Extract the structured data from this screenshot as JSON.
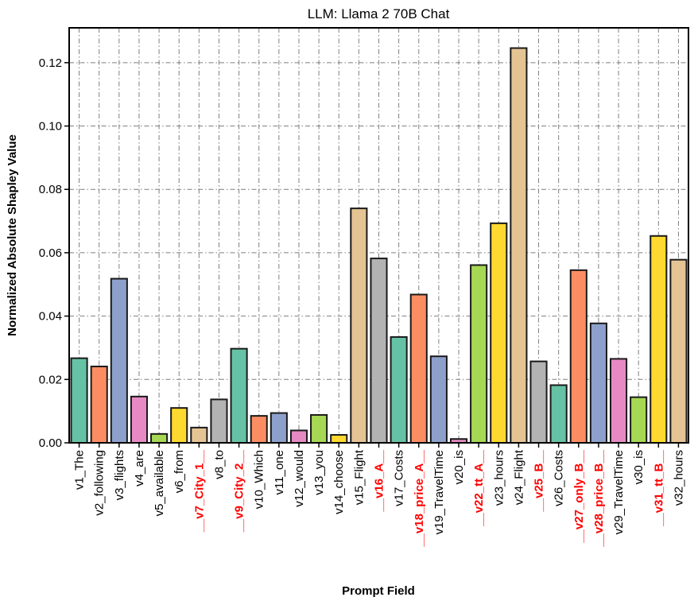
{
  "chart_data": {
    "type": "bar",
    "title": "LLM: Llama 2 70B Chat",
    "xlabel": "Prompt Field",
    "ylabel": "Normalized Absolute Shapley Value",
    "ylim": [
      0,
      0.131
    ],
    "yticks": [
      "0.00",
      "0.02",
      "0.04",
      "0.06",
      "0.08",
      "0.10",
      "0.12"
    ],
    "grid": true,
    "categories": [
      "v1_The",
      "v2_following",
      "v3_flights",
      "v4_are",
      "v5_available",
      "v6_from",
      "__v7_City_1__",
      "v8_to",
      "__v9_City_2__",
      "v10_Which",
      "v11_one",
      "v12_would",
      "v13_you",
      "v14_choose",
      "v15_Flight",
      "__v16_A__",
      "v17_Costs",
      "__v18_price_A__",
      "v19_TravelTime",
      "v20_is",
      "__v22_tt_A__",
      "v23_hours",
      "v24_Flight",
      "__v25_B__",
      "v26_Costs",
      "__v27_only_B__",
      "__v28_price_B__",
      "v29_TravelTime",
      "v30_is",
      "__v31_tt_B__",
      "v32_hours"
    ],
    "highlighted": [
      false,
      false,
      false,
      false,
      false,
      false,
      true,
      false,
      true,
      false,
      false,
      false,
      false,
      false,
      false,
      true,
      false,
      true,
      false,
      false,
      true,
      false,
      false,
      true,
      false,
      true,
      true,
      false,
      false,
      true,
      false
    ],
    "values": [
      0.0267,
      0.0241,
      0.0518,
      0.0146,
      0.0028,
      0.011,
      0.0048,
      0.0137,
      0.0297,
      0.0085,
      0.0094,
      0.0039,
      0.0088,
      0.0025,
      0.074,
      0.0582,
      0.0334,
      0.0468,
      0.0273,
      0.0012,
      0.0561,
      0.0693,
      0.1246,
      0.0257,
      0.0182,
      0.0545,
      0.0377,
      0.0265,
      0.0144,
      0.0653,
      0.0578
    ],
    "bar_colors": [
      "#66c2a5",
      "#fc8d62",
      "#8da0cb",
      "#e78ac3",
      "#a6d854",
      "#ffd92f",
      "#e5c494",
      "#b3b3b3",
      "#66c2a5",
      "#fc8d62",
      "#8da0cb",
      "#e78ac3",
      "#a6d854",
      "#ffd92f",
      "#e5c494",
      "#b3b3b3",
      "#66c2a5",
      "#fc8d62",
      "#8da0cb",
      "#e78ac3",
      "#a6d854",
      "#ffd92f",
      "#e5c494",
      "#b3b3b3",
      "#66c2a5",
      "#fc8d62",
      "#8da0cb",
      "#e78ac3",
      "#a6d854",
      "#ffd92f",
      "#e5c494"
    ],
    "highlight_color": "#ff0000",
    "normal_label_color": "#000000"
  }
}
